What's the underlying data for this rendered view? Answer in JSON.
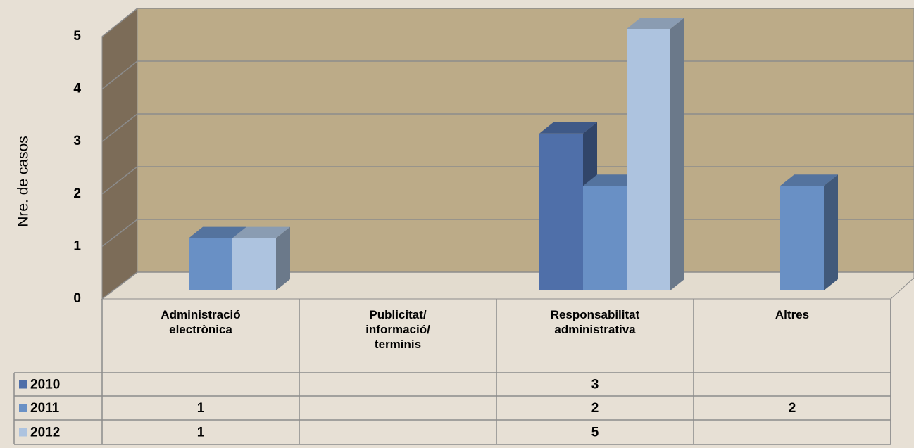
{
  "chart_data": {
    "type": "bar3d",
    "y_label": "Nre. de casos",
    "categories": [
      "Administració electrònica",
      "Publicitat/ informació/ terminis",
      "Responsabilitat administrativa",
      "Altres"
    ],
    "series": [
      {
        "name": "2010",
        "color": "#4f6fa9",
        "values": [
          null,
          null,
          3,
          null
        ]
      },
      {
        "name": "2011",
        "color": "#6990c5",
        "values": [
          1,
          null,
          2,
          2
        ]
      },
      {
        "name": "2012",
        "color": "#adc3df",
        "values": [
          1,
          null,
          5,
          null
        ]
      }
    ],
    "ylim": [
      0,
      5
    ],
    "yticks": [
      0,
      1,
      2,
      3,
      4,
      5
    ],
    "grid": true,
    "data_table": true
  }
}
